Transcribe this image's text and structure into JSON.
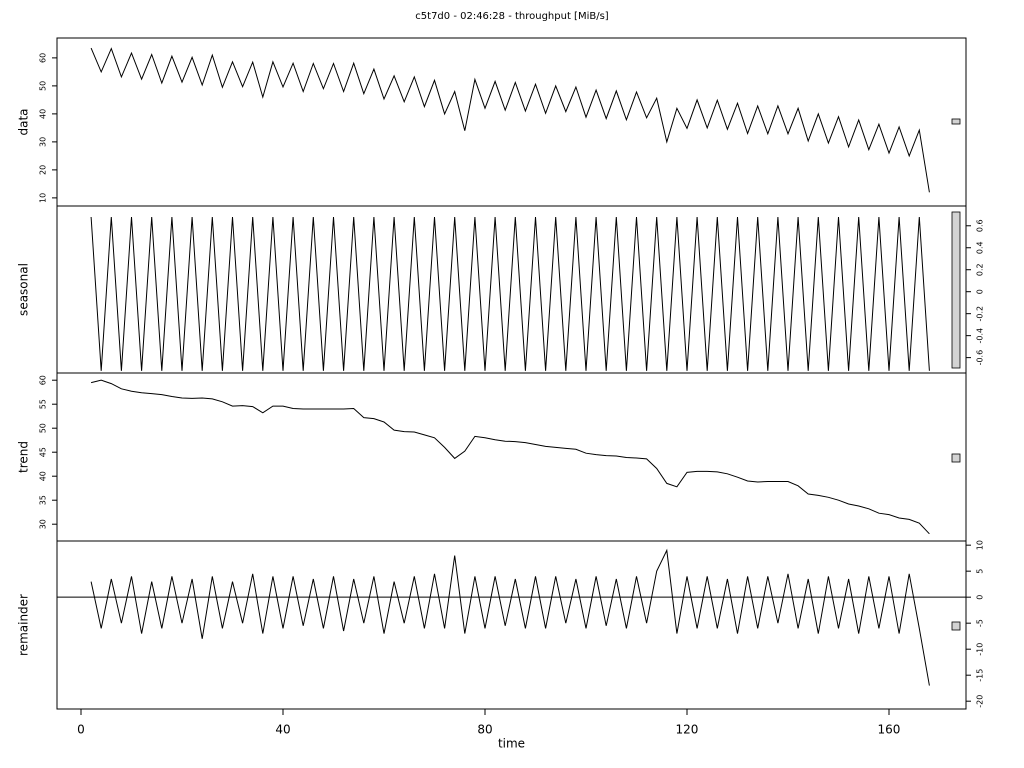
{
  "chart_data": [
    {
      "type": "line",
      "title": "c5t7d0 - 02:46:28 - throughput [MiB/s]",
      "ylabel": "data",
      "color": "#000000",
      "axis_side": "left",
      "x": [
        2,
        4,
        6,
        8,
        10,
        12,
        14,
        16,
        18,
        20,
        22,
        24,
        26,
        28,
        30,
        32,
        34,
        36,
        38,
        40,
        42,
        44,
        46,
        48,
        50,
        52,
        54,
        56,
        58,
        60,
        62,
        64,
        66,
        68,
        70,
        72,
        74,
        76,
        78,
        80,
        82,
        84,
        86,
        88,
        90,
        92,
        94,
        96,
        98,
        100,
        102,
        104,
        106,
        108,
        110,
        112,
        114,
        116,
        118,
        120,
        122,
        124,
        126,
        128,
        130,
        132,
        134,
        136,
        138,
        140,
        142,
        144,
        146,
        148,
        150,
        152,
        154,
        156,
        158,
        160,
        162,
        164,
        166,
        168
      ],
      "values": [
        63.5,
        55,
        63.3,
        53.2,
        61.7,
        52.4,
        61.2,
        51,
        60.6,
        51.3,
        60.2,
        50.3,
        61,
        49.5,
        58.6,
        49.7,
        58.5,
        46,
        58.6,
        49.6,
        58.1,
        48,
        58,
        49,
        58,
        48,
        58.1,
        47.2,
        56,
        45.3,
        53.6,
        44.3,
        53.2,
        42.6,
        52,
        40,
        48,
        34,
        52.3,
        42,
        51.6,
        41.3,
        51.2,
        41,
        50.6,
        40.2,
        50,
        40.8,
        49.6,
        38.8,
        48.5,
        38.3,
        48.2,
        37.9,
        47.8,
        38.6,
        45.6,
        30,
        42,
        34.8,
        45,
        35,
        44.9,
        34.5,
        43.8,
        33,
        42.8,
        32.9,
        42.9,
        32.9,
        42,
        30.3,
        40,
        29.6,
        39,
        28.2,
        37.8,
        27.2,
        36.3,
        26,
        35.3,
        25,
        34.2,
        12
      ],
      "xlim": [
        -4.75,
        175.25
      ],
      "ylim": [
        7.1,
        67.1
      ],
      "yticks": [
        10,
        20,
        30,
        40,
        50,
        60
      ]
    },
    {
      "type": "line",
      "ylabel": "seasonal",
      "color": "#000000",
      "axis_side": "right",
      "x": [
        2,
        4,
        6,
        8,
        10,
        12,
        14,
        16,
        18,
        20,
        22,
        24,
        26,
        28,
        30,
        32,
        34,
        36,
        38,
        40,
        42,
        44,
        46,
        48,
        50,
        52,
        54,
        56,
        58,
        60,
        62,
        64,
        66,
        68,
        70,
        72,
        74,
        76,
        78,
        80,
        82,
        84,
        86,
        88,
        90,
        92,
        94,
        96,
        98,
        100,
        102,
        104,
        106,
        108,
        110,
        112,
        114,
        116,
        118,
        120,
        122,
        124,
        126,
        128,
        130,
        132,
        134,
        136,
        138,
        140,
        142,
        144,
        146,
        148,
        150,
        152,
        154,
        156,
        158,
        160,
        162,
        164,
        166,
        168
      ],
      "values": [
        0.68,
        -0.72,
        0.68,
        -0.72,
        0.68,
        -0.72,
        0.68,
        -0.72,
        0.68,
        -0.72,
        0.68,
        -0.72,
        0.68,
        -0.72,
        0.68,
        -0.72,
        0.68,
        -0.72,
        0.68,
        -0.72,
        0.68,
        -0.72,
        0.68,
        -0.72,
        0.68,
        -0.72,
        0.68,
        -0.72,
        0.68,
        -0.72,
        0.68,
        -0.72,
        0.68,
        -0.72,
        0.68,
        -0.72,
        0.68,
        -0.72,
        0.68,
        -0.72,
        0.68,
        -0.72,
        0.68,
        -0.72,
        0.68,
        -0.72,
        0.68,
        -0.72,
        0.68,
        -0.72,
        0.68,
        -0.72,
        0.68,
        -0.72,
        0.68,
        -0.72,
        0.68,
        -0.72,
        0.68,
        -0.72,
        0.68,
        -0.72,
        0.68,
        -0.72,
        0.68,
        -0.72,
        0.68,
        -0.72,
        0.68,
        -0.72,
        0.68,
        -0.72,
        0.68,
        -0.72,
        0.68,
        -0.72,
        0.68,
        -0.72,
        0.68,
        -0.72,
        0.68,
        -0.72,
        0.68,
        -0.72
      ],
      "xlim": [
        -4.75,
        175.25
      ],
      "ylim": [
        -0.74,
        0.78
      ],
      "yticks": [
        -0.6,
        -0.4,
        -0.2,
        0,
        0.2,
        0.4,
        0.6
      ]
    },
    {
      "type": "line",
      "ylabel": "trend",
      "color": "#000000",
      "axis_side": "left",
      "x": [
        2,
        4,
        6,
        8,
        10,
        12,
        14,
        16,
        18,
        20,
        22,
        24,
        26,
        28,
        30,
        32,
        34,
        36,
        38,
        40,
        42,
        44,
        46,
        48,
        50,
        52,
        54,
        56,
        58,
        60,
        62,
        64,
        66,
        68,
        70,
        72,
        74,
        76,
        78,
        80,
        82,
        84,
        86,
        88,
        90,
        92,
        94,
        96,
        98,
        100,
        102,
        104,
        106,
        108,
        110,
        112,
        114,
        116,
        118,
        120,
        122,
        124,
        126,
        128,
        130,
        132,
        134,
        136,
        138,
        140,
        142,
        144,
        146,
        148,
        150,
        152,
        154,
        156,
        158,
        160,
        162,
        164,
        166,
        168
      ],
      "values": [
        59.5,
        60,
        59.3,
        58.2,
        57.7,
        57.4,
        57.2,
        57,
        56.6,
        56.3,
        56.2,
        56.3,
        56.1,
        55.5,
        54.6,
        54.7,
        54.5,
        53.2,
        54.6,
        54.6,
        54.1,
        54,
        54,
        54,
        54,
        54,
        54.1,
        52.2,
        52,
        51.3,
        49.6,
        49.3,
        49.2,
        48.6,
        48,
        46,
        43.7,
        45.2,
        48.3,
        48,
        47.6,
        47.3,
        47.2,
        47,
        46.6,
        46.2,
        46,
        45.8,
        45.6,
        44.8,
        44.5,
        44.3,
        44.2,
        43.9,
        43.8,
        43.6,
        41.6,
        38.5,
        37.8,
        40.8,
        41,
        41,
        40.9,
        40.5,
        39.8,
        39,
        38.8,
        38.9,
        38.9,
        38.9,
        38,
        36.3,
        36,
        35.6,
        35,
        34.2,
        33.8,
        33.2,
        32.3,
        32,
        31.3,
        31,
        30.2,
        28
      ],
      "xlim": [
        -4.75,
        175.25
      ],
      "ylim": [
        26.5,
        61.5
      ],
      "yticks": [
        30,
        35,
        40,
        45,
        50,
        55,
        60
      ]
    },
    {
      "type": "line",
      "ylabel": "remainder",
      "color": "#000000",
      "axis_side": "right",
      "zero_line": true,
      "x": [
        2,
        4,
        6,
        8,
        10,
        12,
        14,
        16,
        18,
        20,
        22,
        24,
        26,
        28,
        30,
        32,
        34,
        36,
        38,
        40,
        42,
        44,
        46,
        48,
        50,
        52,
        54,
        56,
        58,
        60,
        62,
        64,
        66,
        68,
        70,
        72,
        74,
        76,
        78,
        80,
        82,
        84,
        86,
        88,
        90,
        92,
        94,
        96,
        98,
        100,
        102,
        104,
        106,
        108,
        110,
        112,
        114,
        116,
        118,
        120,
        122,
        124,
        126,
        128,
        130,
        132,
        134,
        136,
        138,
        140,
        142,
        144,
        146,
        148,
        150,
        152,
        154,
        156,
        158,
        160,
        162,
        164,
        166,
        168
      ],
      "values": [
        3,
        -6,
        3.5,
        -5,
        4,
        -7,
        3,
        -6,
        4,
        -5,
        3.5,
        -8,
        4,
        -6,
        3,
        -5,
        4.5,
        -7,
        4,
        -6,
        4,
        -5.5,
        3.5,
        -6,
        4,
        -6.5,
        3.5,
        -5,
        4,
        -7,
        3,
        -5,
        4,
        -6,
        4.5,
        -6,
        8,
        -7,
        4,
        -6,
        4,
        -5.5,
        3.5,
        -6,
        4,
        -6,
        4,
        -5,
        3.5,
        -6,
        4,
        -5.5,
        3.5,
        -6,
        4,
        -5,
        5,
        9,
        -7,
        4,
        -6,
        4,
        -6,
        3.5,
        -7,
        4,
        -6,
        4,
        -5,
        4.5,
        -6,
        3.5,
        -7,
        4,
        -6,
        3.5,
        -7,
        4,
        -6,
        4,
        -7,
        4.5,
        -6,
        -17
      ],
      "xlim": [
        -4.75,
        175.25
      ],
      "ylim": [
        -21.5,
        10.8
      ],
      "yticks": [
        -20,
        -15,
        -10,
        -5,
        0,
        5,
        10
      ],
      "xlabel": "time",
      "xticks": [
        0,
        40,
        80,
        120,
        160
      ]
    }
  ]
}
